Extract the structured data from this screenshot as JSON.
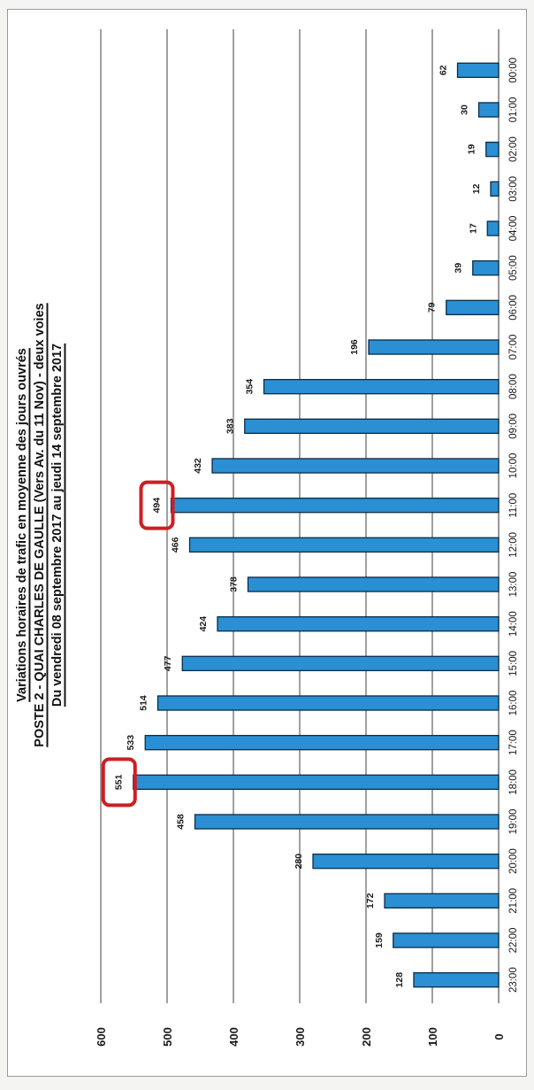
{
  "chart_data": {
    "type": "bar",
    "title": "Variations horaires de trafic en moyenne des jours ouvrés",
    "subtitle": "POSTE 2 - QUAI CHARLES DE GAULLE (Vers Av. du 11 Nov) - deux voies",
    "period": "Du vendredi 08 septembre 2017 au jeudi 14 septembre 2017",
    "xlabel": "",
    "ylabel": "",
    "categories": [
      "00:00",
      "01:00",
      "02:00",
      "03:00",
      "04:00",
      "05:00",
      "06:00",
      "07:00",
      "08:00",
      "09:00",
      "10:00",
      "11:00",
      "12:00",
      "13:00",
      "14:00",
      "15:00",
      "16:00",
      "17:00",
      "18:00",
      "19:00",
      "20:00",
      "21:00",
      "22:00",
      "23:00"
    ],
    "values": [
      62,
      30,
      19,
      12,
      17,
      39,
      79,
      196,
      354,
      383,
      432,
      494,
      466,
      378,
      424,
      477,
      514,
      533,
      551,
      458,
      280,
      172,
      159,
      128
    ],
    "value_labels": [
      "62",
      "30",
      "19",
      "12",
      "17",
      "39",
      "79",
      "196",
      "354",
      "383",
      "432",
      "494",
      "466",
      "378",
      "424",
      "477",
      "514",
      "533",
      "551",
      "458",
      "280",
      "172",
      "159",
      "128"
    ],
    "ylim": [
      0,
      600
    ],
    "yticks": [
      0,
      100,
      200,
      300,
      400,
      500,
      600
    ],
    "grid": true,
    "orientation": "rotated-90-ccw",
    "highlighted": [
      "11:00",
      "18:00"
    ],
    "colors": {
      "bar": "#2a8fd3",
      "bar_edge": "#0b2c47",
      "highlight": "#cc1f25",
      "grid": "#777777"
    }
  }
}
